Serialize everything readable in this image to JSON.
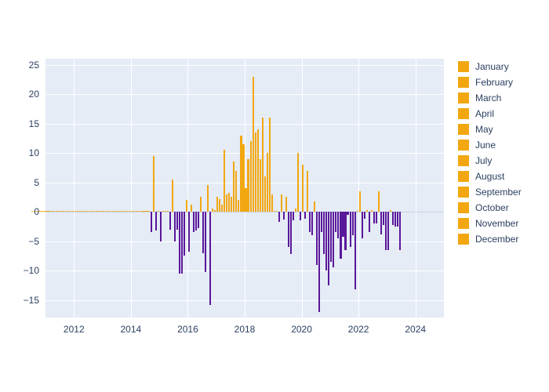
{
  "chart": {
    "type": "bar",
    "background_color": "#ffffff",
    "plot_background_color": "#e5ecf6",
    "grid_color": "#ffffff",
    "tick_font_color": "#2a3f5f",
    "tick_font_size": 12,
    "positive_bar_color": "#f2a711",
    "negative_bar_color": "#5a189a",
    "zero_tick_color": "#c8d4e3",
    "x": {
      "min": 2011,
      "max": 2025,
      "ticks": [
        2012,
        2014,
        2016,
        2018,
        2020,
        2022,
        2024
      ],
      "tick_labels": [
        "2012",
        "2014",
        "2016",
        "2018",
        "2020",
        "2022",
        "2024"
      ]
    },
    "y": {
      "min": -18,
      "max": 26,
      "ticks": [
        -15,
        -10,
        -5,
        0,
        5,
        10,
        15,
        20,
        25
      ],
      "tick_labels": [
        "−15",
        "−10",
        "−5",
        "0",
        "5",
        "10",
        "15",
        "20",
        "25"
      ]
    },
    "data": {
      "2011": {
        "pos": [
          0.1,
          0.1,
          0.1,
          0.1,
          0.1,
          0.1,
          0.1,
          0.1,
          0.1,
          0.1,
          0.1,
          0.1
        ],
        "neg": [
          0,
          0,
          0,
          0,
          0,
          0,
          0,
          0,
          0,
          0,
          0,
          0
        ]
      },
      "2012": {
        "pos": [
          0.1,
          0.1,
          0.1,
          0.1,
          0.1,
          0.1,
          0.1,
          0.1,
          0.1,
          0.1,
          0.1,
          0.1
        ],
        "neg": [
          0,
          0,
          0,
          0,
          0,
          0,
          0,
          0,
          0,
          0,
          0,
          0
        ]
      },
      "2013": {
        "pos": [
          0.1,
          0.1,
          0.1,
          0.1,
          0.1,
          0.1,
          0.1,
          0.1,
          0.1,
          0.1,
          0.1,
          0.1
        ],
        "neg": [
          0,
          0,
          0,
          0,
          0,
          0,
          0,
          0,
          0,
          0,
          0,
          0
        ]
      },
      "2014": {
        "pos": [
          0.1,
          0.1,
          0.1,
          0.1,
          0.1,
          0.1,
          0.1,
          0.1,
          0.1,
          0.1,
          0.1,
          0.1
        ],
        "neg": [
          0,
          0,
          0,
          0,
          0,
          0,
          0,
          0,
          0,
          0,
          0,
          0
        ]
      },
      "2015": {
        "pos": [
          0.1,
          0.1,
          0,
          9.5,
          0,
          0.2,
          0,
          0.1,
          0.1,
          0.1,
          0,
          5.5
        ],
        "neg": [
          0,
          0,
          -3.5,
          0,
          -3.2,
          0,
          -5,
          0,
          0,
          0,
          -3,
          0
        ]
      },
      "2016": {
        "pos": [
          0,
          0,
          0,
          0,
          0,
          2,
          0,
          1.2,
          0,
          0,
          0,
          2.5
        ],
        "neg": [
          -5,
          -3,
          -10.5,
          -10.5,
          -7.5,
          0,
          -6.8,
          0,
          -3.5,
          -3.2,
          -2.8,
          0
        ]
      },
      "2017": {
        "pos": [
          0,
          0,
          4.5,
          0,
          0.5,
          0.3,
          2.5,
          2.2,
          1.2,
          10.5,
          3,
          3.2
        ],
        "neg": [
          -7,
          -10.2,
          0,
          -15.8,
          0,
          0,
          0,
          0,
          0,
          0,
          0,
          0
        ]
      },
      "2018": {
        "pos": [
          2.5,
          8.5,
          7,
          2,
          13,
          11.5,
          4,
          9,
          12,
          23,
          13.5,
          14
        ],
        "neg": [
          0,
          0,
          0,
          0,
          0,
          0,
          0,
          0,
          0,
          0,
          0,
          0
        ]
      },
      "2019": {
        "pos": [
          9,
          16,
          6,
          10,
          16,
          3,
          0.1,
          0.1,
          0,
          3,
          0,
          2.5
        ],
        "neg": [
          0,
          0,
          0,
          0,
          0,
          0,
          0,
          0,
          -1.7,
          0,
          -1.3,
          0
        ]
      },
      "2020": {
        "pos": [
          0,
          0,
          0,
          0.5,
          10,
          0,
          8,
          0,
          7,
          0,
          0,
          1.8
        ],
        "neg": [
          -6,
          -7.2,
          -1.5,
          0,
          0,
          -1.5,
          0,
          -1.2,
          0,
          -3.5,
          -4,
          0
        ]
      },
      "2021": {
        "pos": [
          0,
          0,
          0,
          0,
          0,
          0,
          0,
          0,
          0,
          0,
          0,
          0
        ],
        "neg": [
          -9,
          -17,
          -3.5,
          -7.2,
          -10,
          -12.5,
          -8.5,
          -9.5,
          -3.5,
          -4.5,
          -8,
          -4.2
        ]
      },
      "2022": {
        "pos": [
          0,
          0,
          0,
          0,
          0,
          0.2,
          3.5,
          0,
          0,
          0.3,
          0,
          0.3
        ],
        "neg": [
          -6.5,
          -0.5,
          -6,
          -4,
          -13.2,
          0,
          0,
          -4.5,
          -1.2,
          0,
          -3.5,
          0
        ]
      },
      "2023": {
        "pos": [
          0,
          0,
          3.5,
          0,
          0,
          0,
          0,
          0.3,
          0,
          0,
          0,
          0
        ],
        "neg": [
          -2,
          -2,
          0,
          -3.8,
          -2.2,
          -6.5,
          -6.5,
          0,
          -2.2,
          -2.5,
          -2.5,
          -6.5
        ]
      }
    },
    "legend": {
      "swatch_color": "#f2a711",
      "items": [
        "January",
        "February",
        "March",
        "April",
        "May",
        "June",
        "July",
        "August",
        "September",
        "October",
        "November",
        "December"
      ]
    }
  }
}
